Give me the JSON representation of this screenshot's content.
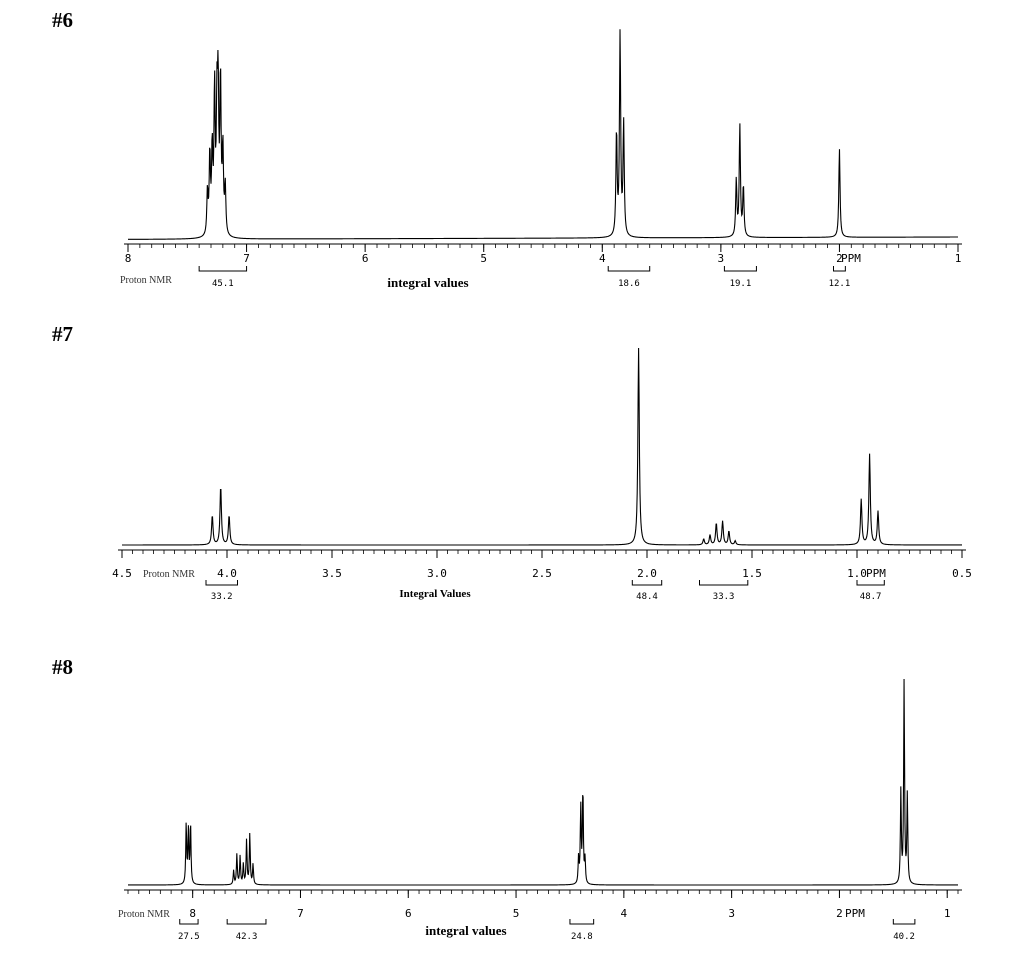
{
  "chart_data": [
    {
      "id": "#6",
      "type": "line",
      "title": "",
      "xlabel": "",
      "unit_label": "PPM",
      "left_label": "Proton NMR",
      "center_label": "integral values",
      "xlim": [
        8.0,
        1.0
      ],
      "major_ticks": [
        {
          "value": 8,
          "label": "8"
        },
        {
          "value": 7,
          "label": "7"
        },
        {
          "value": 6,
          "label": "6"
        },
        {
          "value": 5,
          "label": "5"
        },
        {
          "value": 4,
          "label": "4"
        },
        {
          "value": 3,
          "label": "3"
        },
        {
          "value": 2,
          "label": "2"
        },
        {
          "value": 1,
          "label": "1"
        }
      ],
      "minor_step": 0.1,
      "peaks": [
        {
          "ppm": 7.33,
          "h": 0.22
        },
        {
          "ppm": 7.31,
          "h": 0.4
        },
        {
          "ppm": 7.29,
          "h": 0.42
        },
        {
          "ppm": 7.27,
          "h": 0.72
        },
        {
          "ppm": 7.25,
          "h": 0.58
        },
        {
          "ppm": 7.24,
          "h": 0.68
        },
        {
          "ppm": 7.22,
          "h": 0.77
        },
        {
          "ppm": 7.2,
          "h": 0.42
        },
        {
          "ppm": 7.18,
          "h": 0.24
        },
        {
          "ppm": 3.88,
          "h": 0.52
        },
        {
          "ppm": 3.85,
          "h": 1.0
        },
        {
          "ppm": 3.82,
          "h": 0.56
        },
        {
          "ppm": 2.87,
          "h": 0.28
        },
        {
          "ppm": 2.84,
          "h": 0.55
        },
        {
          "ppm": 2.81,
          "h": 0.25
        },
        {
          "ppm": 2.0,
          "h": 0.44
        }
      ],
      "integrals": [
        {
          "from": 7.4,
          "to": 7.0,
          "value": "45.1"
        },
        {
          "from": 3.95,
          "to": 3.6,
          "value": "18.6"
        },
        {
          "from": 2.97,
          "to": 2.7,
          "value": "19.1"
        },
        {
          "from": 2.05,
          "to": 1.95,
          "value": "12.1"
        }
      ]
    },
    {
      "id": "#7",
      "type": "line",
      "title": "",
      "xlabel": "",
      "unit_label": "PPM",
      "left_label": "Proton NMR",
      "center_label": "Integral Values",
      "xlim": [
        4.5,
        0.5
      ],
      "major_ticks": [
        {
          "value": 4.5,
          "label": "4.5"
        },
        {
          "value": 4.0,
          "label": "4.0"
        },
        {
          "value": 3.5,
          "label": "3.5"
        },
        {
          "value": 3.0,
          "label": "3.0"
        },
        {
          "value": 2.5,
          "label": "2.5"
        },
        {
          "value": 2.0,
          "label": "2.0"
        },
        {
          "value": 1.5,
          "label": "1.5"
        },
        {
          "value": 1.0,
          "label": "1.0"
        },
        {
          "value": 0.5,
          "label": "0.5"
        }
      ],
      "minor_step": 0.05,
      "peaks": [
        {
          "ppm": 4.07,
          "h": 0.15
        },
        {
          "ppm": 4.03,
          "h": 0.3
        },
        {
          "ppm": 3.99,
          "h": 0.15
        },
        {
          "ppm": 2.04,
          "h": 1.0
        },
        {
          "ppm": 1.73,
          "h": 0.03
        },
        {
          "ppm": 1.7,
          "h": 0.05
        },
        {
          "ppm": 1.67,
          "h": 0.11
        },
        {
          "ppm": 1.64,
          "h": 0.12
        },
        {
          "ppm": 1.61,
          "h": 0.07
        },
        {
          "ppm": 1.58,
          "h": 0.02
        },
        {
          "ppm": 0.98,
          "h": 0.23
        },
        {
          "ppm": 0.94,
          "h": 0.46
        },
        {
          "ppm": 0.9,
          "h": 0.17
        }
      ],
      "integrals": [
        {
          "from": 4.1,
          "to": 3.95,
          "value": "33.2"
        },
        {
          "from": 2.07,
          "to": 1.93,
          "value": "48.4"
        },
        {
          "from": 1.75,
          "to": 1.52,
          "value": "33.3"
        },
        {
          "from": 1.0,
          "to": 0.87,
          "value": "48.7"
        }
      ]
    },
    {
      "id": "#8",
      "type": "line",
      "title": "",
      "xlabel": "",
      "unit_label": "PPM",
      "left_label": "Proton NMR",
      "center_label": "integral values",
      "xlim": [
        8.6,
        0.9
      ],
      "major_ticks": [
        {
          "value": 8,
          "label": "8"
        },
        {
          "value": 7,
          "label": "7"
        },
        {
          "value": 6,
          "label": "6"
        },
        {
          "value": 5,
          "label": "5"
        },
        {
          "value": 4,
          "label": "4"
        },
        {
          "value": 3,
          "label": "3"
        },
        {
          "value": 2,
          "label": "2"
        },
        {
          "value": 1,
          "label": "1"
        }
      ],
      "minor_step": 0.1,
      "peaks": [
        {
          "ppm": 8.06,
          "h": 0.3
        },
        {
          "ppm": 8.04,
          "h": 0.26
        },
        {
          "ppm": 8.02,
          "h": 0.31
        },
        {
          "ppm": 7.62,
          "h": 0.07
        },
        {
          "ppm": 7.59,
          "h": 0.15
        },
        {
          "ppm": 7.56,
          "h": 0.14
        },
        {
          "ppm": 7.53,
          "h": 0.1
        },
        {
          "ppm": 7.5,
          "h": 0.22
        },
        {
          "ppm": 7.47,
          "h": 0.25
        },
        {
          "ppm": 7.44,
          "h": 0.1
        },
        {
          "ppm": 4.42,
          "h": 0.13
        },
        {
          "ppm": 4.4,
          "h": 0.38
        },
        {
          "ppm": 4.38,
          "h": 0.48
        },
        {
          "ppm": 4.36,
          "h": 0.12
        },
        {
          "ppm": 1.43,
          "h": 0.46
        },
        {
          "ppm": 1.4,
          "h": 1.0
        },
        {
          "ppm": 1.37,
          "h": 0.44
        }
      ],
      "integrals": [
        {
          "from": 8.12,
          "to": 7.95,
          "value": "27.5"
        },
        {
          "from": 7.68,
          "to": 7.32,
          "value": "42.3"
        },
        {
          "from": 4.5,
          "to": 4.28,
          "value": "24.8"
        },
        {
          "from": 1.5,
          "to": 1.3,
          "value": "40.2"
        }
      ]
    }
  ]
}
